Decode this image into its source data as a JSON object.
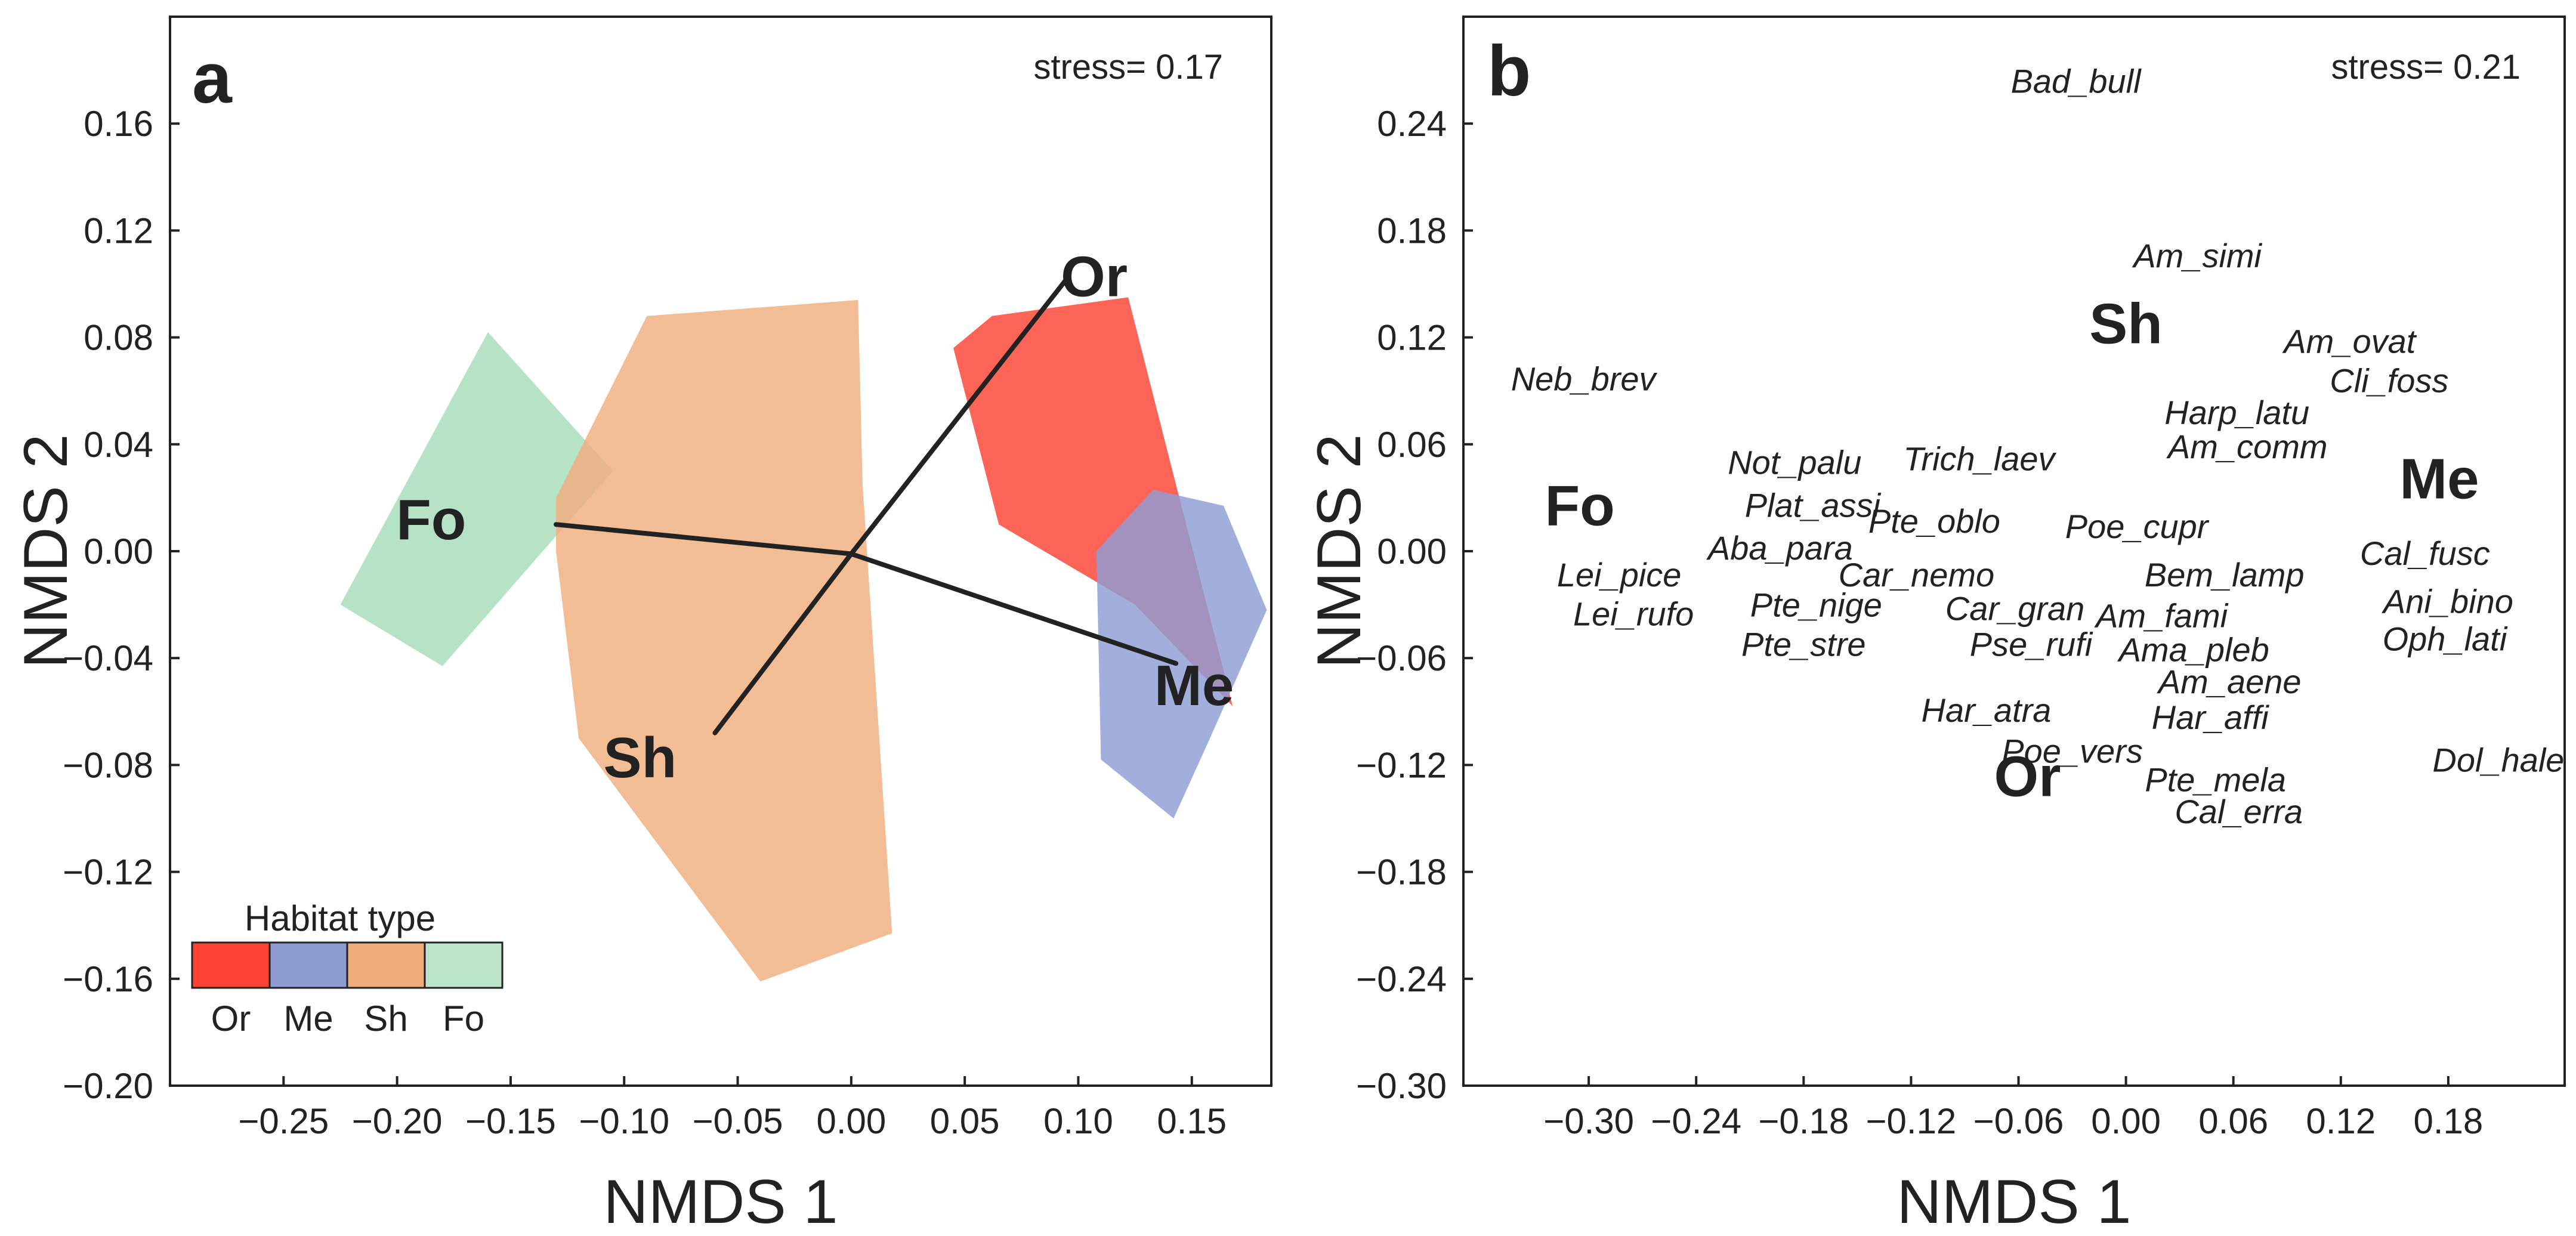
{
  "chart_data": [
    {
      "type": "scatter",
      "panel_label": "a",
      "stress_label": "stress= 0.17",
      "xlabel": "NMDS 1",
      "ylabel": "NMDS 2",
      "xlim": [
        -0.3,
        0.185
      ],
      "ylim": [
        -0.2,
        0.2
      ],
      "xticks": [
        -0.25,
        -0.2,
        -0.15,
        -0.1,
        -0.05,
        0.0,
        0.05,
        0.1,
        0.15
      ],
      "xtick_labels": [
        "−0.25",
        "−0.20",
        "−0.15",
        "−0.10",
        "−0.05",
        "0.00",
        "0.05",
        "0.10",
        "0.15"
      ],
      "yticks": [
        0.16,
        0.12,
        0.08,
        0.04,
        0.0,
        -0.04,
        -0.08,
        -0.12,
        -0.16,
        -0.2
      ],
      "ytick_labels": [
        "0.16",
        "0.12",
        "0.08",
        "0.04",
        "0.00",
        "−0.04",
        "−0.08",
        "−0.12",
        "−0.16",
        "−0.20"
      ],
      "hulls": [
        {
          "name": "Fo",
          "color": "#a6dcba",
          "points": [
            [
              -0.225,
              -0.02
            ],
            [
              -0.18,
              -0.043
            ],
            [
              -0.105,
              0.03
            ],
            [
              -0.16,
              0.082
            ]
          ]
        },
        {
          "name": "Sh",
          "color": "#efad7d",
          "points": [
            [
              -0.13,
              0.02
            ],
            [
              -0.09,
              0.088
            ],
            [
              0.003,
              0.094
            ],
            [
              0.005,
              0.025
            ],
            [
              0.018,
              -0.143
            ],
            [
              -0.04,
              -0.161
            ],
            [
              -0.12,
              -0.07
            ],
            [
              -0.13,
              0.0
            ]
          ]
        },
        {
          "name": "Or",
          "color": "#fb4233",
          "points": [
            [
              0.045,
              0.076
            ],
            [
              0.062,
              0.088
            ],
            [
              0.122,
              0.095
            ],
            [
              0.14,
              0.035
            ],
            [
              0.168,
              -0.058
            ],
            [
              0.125,
              -0.02
            ],
            [
              0.065,
              0.01
            ]
          ]
        },
        {
          "name": "Me",
          "color": "#8e9cd3",
          "points": [
            [
              0.133,
              0.023
            ],
            [
              0.164,
              0.017
            ],
            [
              0.183,
              -0.022
            ],
            [
              0.158,
              -0.07
            ],
            [
              0.142,
              -0.1
            ],
            [
              0.11,
              -0.078
            ],
            [
              0.108,
              0.0
            ]
          ]
        }
      ],
      "centroid": [
        0.0,
        -0.001
      ],
      "arms": [
        {
          "name": "Fo",
          "x": -0.13,
          "y": 0.01,
          "label_x": -0.185,
          "label_y": 0.012
        },
        {
          "name": "Or",
          "x": 0.095,
          "y": 0.102,
          "label_x": 0.107,
          "label_y": 0.103
        },
        {
          "name": "Me",
          "x": 0.143,
          "y": -0.042,
          "label_x": 0.151,
          "label_y": -0.05
        },
        {
          "name": "Sh",
          "x": -0.06,
          "y": -0.068,
          "label_x": -0.093,
          "label_y": -0.077
        }
      ],
      "legend": {
        "title": "Habitat type",
        "entries": [
          {
            "label": "Or",
            "color": "#fb4233"
          },
          {
            "label": "Me",
            "color": "#8e9cd3"
          },
          {
            "label": "Sh",
            "color": "#efad7d"
          },
          {
            "label": "Fo",
            "color": "#bde5cb"
          }
        ]
      }
    },
    {
      "type": "scatter",
      "panel_label": "b",
      "stress_label": "stress= 0.21",
      "xlabel": "NMDS 1",
      "ylabel": "NMDS 2",
      "xlim": [
        -0.37,
        0.245
      ],
      "ylim": [
        -0.3,
        0.3
      ],
      "xticks": [
        -0.3,
        -0.24,
        -0.18,
        -0.12,
        -0.06,
        0.0,
        0.06,
        0.12,
        0.18
      ],
      "xtick_labels": [
        "−0.30",
        "−0.24",
        "−0.18",
        "−0.12",
        "−0.06",
        "0.00",
        "0.06",
        "0.12",
        "0.18"
      ],
      "yticks": [
        0.24,
        0.18,
        0.12,
        0.06,
        0.0,
        -0.06,
        -0.12,
        -0.18,
        -0.24,
        -0.3
      ],
      "ytick_labels": [
        "0.24",
        "0.18",
        "0.12",
        "0.06",
        "0.00",
        "−0.06",
        "−0.12",
        "−0.18",
        "−0.24",
        "−0.30"
      ],
      "habitats": [
        {
          "name": "Sh",
          "x": 0.0,
          "y": 0.128
        },
        {
          "name": "Fo",
          "x": -0.305,
          "y": 0.026
        },
        {
          "name": "Me",
          "x": 0.175,
          "y": 0.041
        },
        {
          "name": "Or",
          "x": -0.055,
          "y": -0.126
        }
      ],
      "species": [
        {
          "name": "Bad_bull",
          "x": -0.028,
          "y": 0.264
        },
        {
          "name": "Am_simi",
          "x": 0.04,
          "y": 0.166
        },
        {
          "name": "Am_ovat",
          "x": 0.125,
          "y": 0.118
        },
        {
          "name": "Cli_foss",
          "x": 0.147,
          "y": 0.096
        },
        {
          "name": "Neb_brev",
          "x": -0.303,
          "y": 0.097
        },
        {
          "name": "Harp_latu",
          "x": 0.062,
          "y": 0.078
        },
        {
          "name": "Am_comm",
          "x": 0.068,
          "y": 0.059
        },
        {
          "name": "Not_palu",
          "x": -0.185,
          "y": 0.05
        },
        {
          "name": "Trich_laev",
          "x": -0.082,
          "y": 0.052
        },
        {
          "name": "Plat_assi",
          "x": -0.175,
          "y": 0.026
        },
        {
          "name": "Pte_oblo",
          "x": -0.107,
          "y": 0.017
        },
        {
          "name": "Poe_cupr",
          "x": 0.006,
          "y": 0.014
        },
        {
          "name": "Aba_para",
          "x": -0.193,
          "y": 0.002
        },
        {
          "name": "Cal_fusc",
          "x": 0.167,
          "y": -0.001
        },
        {
          "name": "Lei_pice",
          "x": -0.283,
          "y": -0.013
        },
        {
          "name": "Car_nemo",
          "x": -0.117,
          "y": -0.013
        },
        {
          "name": "Bem_lamp",
          "x": 0.055,
          "y": -0.013
        },
        {
          "name": "Pte_nige",
          "x": -0.173,
          "y": -0.03
        },
        {
          "name": "Car_gran",
          "x": -0.062,
          "y": -0.032
        },
        {
          "name": "Am_fami",
          "x": 0.02,
          "y": -0.036
        },
        {
          "name": "Ani_bino",
          "x": 0.18,
          "y": -0.028
        },
        {
          "name": "Lei_rufo",
          "x": -0.275,
          "y": -0.035
        },
        {
          "name": "Pte_stre",
          "x": -0.18,
          "y": -0.052
        },
        {
          "name": "Pse_rufi",
          "x": -0.053,
          "y": -0.052
        },
        {
          "name": "Ama_pleb",
          "x": 0.038,
          "y": -0.055
        },
        {
          "name": "Oph_lati",
          "x": 0.178,
          "y": -0.049
        },
        {
          "name": "Am_aene",
          "x": 0.058,
          "y": -0.073
        },
        {
          "name": "Har_atra",
          "x": -0.078,
          "y": -0.089
        },
        {
          "name": "Har_affi",
          "x": 0.047,
          "y": -0.093
        },
        {
          "name": "Poe_vers",
          "x": -0.03,
          "y": -0.112
        },
        {
          "name": "Dol_hale",
          "x": 0.208,
          "y": -0.117
        },
        {
          "name": "Pte_mela",
          "x": 0.05,
          "y": -0.128
        },
        {
          "name": "Cal_erra",
          "x": 0.063,
          "y": -0.146
        }
      ]
    }
  ]
}
